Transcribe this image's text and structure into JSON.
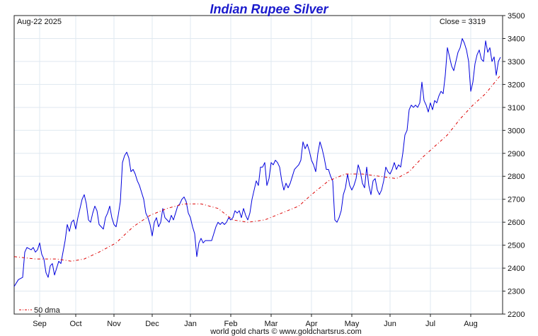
{
  "chart_data": {
    "type": "line",
    "title": "Indian Rupee Silver",
    "date_label": "Aug-22  2025",
    "close_label": "Close = 3319",
    "footer": "world gold charts © www.goldchartsrus.com",
    "ylim": [
      2200,
      3500
    ],
    "y_ticks": [
      2200,
      2300,
      2400,
      2500,
      2600,
      2700,
      2800,
      2900,
      3000,
      3100,
      3200,
      3300,
      3400,
      3500
    ],
    "x_ticks": [
      "Sep",
      "Oct",
      "Nov",
      "Dec",
      "Jan",
      "Feb",
      "Mar",
      "Apr",
      "May",
      "Jun",
      "Jul",
      "Aug"
    ],
    "grid": true,
    "legend": {
      "position": "bottom-left",
      "label": "50 dma"
    },
    "colors": {
      "price": "#0000dd",
      "dma": "#dd0000",
      "title": "#1a1acc",
      "grid": "#dfe8f0"
    },
    "series": [
      {
        "name": "",
        "style": "solid",
        "points": [
          [
            0,
            2320
          ],
          [
            2,
            2350
          ],
          [
            4,
            2360
          ],
          [
            5,
            2470
          ],
          [
            6,
            2490
          ],
          [
            8,
            2480
          ],
          [
            9,
            2490
          ],
          [
            10,
            2470
          ],
          [
            11,
            2480
          ],
          [
            12,
            2510
          ],
          [
            13,
            2460
          ],
          [
            14,
            2440
          ],
          [
            15,
            2380
          ],
          [
            16,
            2360
          ],
          [
            17,
            2410
          ],
          [
            18,
            2420
          ],
          [
            19,
            2370
          ],
          [
            20,
            2400
          ],
          [
            21,
            2430
          ],
          [
            22,
            2420
          ],
          [
            23,
            2470
          ],
          [
            24,
            2520
          ],
          [
            25,
            2590
          ],
          [
            26,
            2560
          ],
          [
            27,
            2600
          ],
          [
            28,
            2610
          ],
          [
            29,
            2570
          ],
          [
            30,
            2620
          ],
          [
            31,
            2660
          ],
          [
            32,
            2700
          ],
          [
            33,
            2720
          ],
          [
            34,
            2680
          ],
          [
            35,
            2610
          ],
          [
            36,
            2600
          ],
          [
            37,
            2640
          ],
          [
            38,
            2670
          ],
          [
            39,
            2650
          ],
          [
            40,
            2590
          ],
          [
            41,
            2580
          ],
          [
            42,
            2570
          ],
          [
            43,
            2620
          ],
          [
            44,
            2640
          ],
          [
            45,
            2670
          ],
          [
            46,
            2620
          ],
          [
            47,
            2590
          ],
          [
            48,
            2580
          ],
          [
            49,
            2630
          ],
          [
            50,
            2690
          ],
          [
            51,
            2860
          ],
          [
            52,
            2890
          ],
          [
            53,
            2905
          ],
          [
            54,
            2880
          ],
          [
            55,
            2820
          ],
          [
            56,
            2830
          ],
          [
            57,
            2810
          ],
          [
            58,
            2780
          ],
          [
            59,
            2760
          ],
          [
            60,
            2730
          ],
          [
            61,
            2700
          ],
          [
            62,
            2640
          ],
          [
            63,
            2620
          ],
          [
            64,
            2590
          ],
          [
            65,
            2540
          ],
          [
            66,
            2600
          ],
          [
            67,
            2620
          ],
          [
            68,
            2580
          ],
          [
            69,
            2600
          ],
          [
            70,
            2660
          ],
          [
            71,
            2620
          ],
          [
            72,
            2610
          ],
          [
            73,
            2600
          ],
          [
            74,
            2630
          ],
          [
            75,
            2610
          ],
          [
            76,
            2640
          ],
          [
            77,
            2670
          ],
          [
            78,
            2680
          ],
          [
            79,
            2700
          ],
          [
            80,
            2710
          ],
          [
            81,
            2690
          ],
          [
            82,
            2640
          ],
          [
            83,
            2620
          ],
          [
            84,
            2580
          ],
          [
            85,
            2550
          ],
          [
            86,
            2450
          ],
          [
            87,
            2510
          ],
          [
            88,
            2530
          ],
          [
            89,
            2510
          ],
          [
            90,
            2520
          ],
          [
            91,
            2520
          ],
          [
            92,
            2520
          ],
          [
            93,
            2520
          ],
          [
            94,
            2550
          ],
          [
            95,
            2580
          ],
          [
            96,
            2600
          ],
          [
            97,
            2590
          ],
          [
            98,
            2600
          ],
          [
            99,
            2590
          ],
          [
            100,
            2600
          ],
          [
            101,
            2620
          ],
          [
            102,
            2610
          ],
          [
            103,
            2620
          ],
          [
            104,
            2650
          ],
          [
            105,
            2640
          ],
          [
            106,
            2650
          ],
          [
            107,
            2620
          ],
          [
            108,
            2660
          ],
          [
            109,
            2630
          ],
          [
            110,
            2610
          ],
          [
            111,
            2640
          ],
          [
            112,
            2700
          ],
          [
            113,
            2740
          ],
          [
            114,
            2780
          ],
          [
            115,
            2760
          ],
          [
            116,
            2840
          ],
          [
            117,
            2840
          ],
          [
            118,
            2860
          ],
          [
            119,
            2760
          ],
          [
            120,
            2790
          ],
          [
            121,
            2860
          ],
          [
            122,
            2850
          ],
          [
            123,
            2870
          ],
          [
            124,
            2860
          ],
          [
            125,
            2840
          ],
          [
            126,
            2780
          ],
          [
            127,
            2740
          ],
          [
            128,
            2770
          ],
          [
            129,
            2750
          ],
          [
            130,
            2770
          ],
          [
            131,
            2800
          ],
          [
            132,
            2830
          ],
          [
            133,
            2840
          ],
          [
            134,
            2850
          ],
          [
            135,
            2870
          ],
          [
            136,
            2950
          ],
          [
            137,
            2920
          ],
          [
            138,
            2940
          ],
          [
            139,
            2910
          ],
          [
            140,
            2870
          ],
          [
            141,
            2850
          ],
          [
            142,
            2820
          ],
          [
            143,
            2900
          ],
          [
            144,
            2950
          ],
          [
            145,
            2920
          ],
          [
            146,
            2880
          ],
          [
            147,
            2830
          ],
          [
            148,
            2830
          ],
          [
            149,
            2800
          ],
          [
            150,
            2780
          ],
          [
            151,
            2610
          ],
          [
            152,
            2600
          ],
          [
            153,
            2620
          ],
          [
            154,
            2650
          ],
          [
            155,
            2720
          ],
          [
            156,
            2750
          ],
          [
            157,
            2810
          ],
          [
            158,
            2760
          ],
          [
            159,
            2740
          ],
          [
            160,
            2760
          ],
          [
            161,
            2790
          ],
          [
            162,
            2850
          ],
          [
            163,
            2820
          ],
          [
            164,
            2770
          ],
          [
            165,
            2750
          ],
          [
            166,
            2840
          ],
          [
            167,
            2760
          ],
          [
            168,
            2720
          ],
          [
            169,
            2780
          ],
          [
            170,
            2790
          ],
          [
            171,
            2740
          ],
          [
            172,
            2720
          ],
          [
            173,
            2740
          ],
          [
            174,
            2780
          ],
          [
            175,
            2840
          ],
          [
            176,
            2820
          ],
          [
            177,
            2810
          ],
          [
            178,
            2830
          ],
          [
            179,
            2860
          ],
          [
            180,
            2830
          ],
          [
            181,
            2850
          ],
          [
            182,
            2840
          ],
          [
            183,
            2900
          ],
          [
            184,
            2980
          ],
          [
            185,
            3000
          ],
          [
            186,
            3090
          ],
          [
            187,
            3110
          ],
          [
            188,
            3100
          ],
          [
            189,
            3110
          ],
          [
            190,
            3100
          ],
          [
            191,
            3120
          ],
          [
            192,
            3210
          ],
          [
            193,
            3130
          ],
          [
            194,
            3110
          ],
          [
            195,
            3080
          ],
          [
            196,
            3120
          ],
          [
            197,
            3090
          ],
          [
            198,
            3130
          ],
          [
            199,
            3120
          ],
          [
            200,
            3150
          ],
          [
            201,
            3170
          ],
          [
            202,
            3160
          ],
          [
            203,
            3240
          ],
          [
            204,
            3360
          ],
          [
            205,
            3320
          ],
          [
            206,
            3280
          ],
          [
            207,
            3260
          ],
          [
            208,
            3300
          ],
          [
            209,
            3340
          ],
          [
            210,
            3360
          ],
          [
            211,
            3400
          ],
          [
            212,
            3380
          ],
          [
            213,
            3350
          ],
          [
            214,
            3300
          ],
          [
            215,
            3170
          ],
          [
            216,
            3210
          ],
          [
            217,
            3290
          ],
          [
            218,
            3330
          ],
          [
            219,
            3350
          ],
          [
            220,
            3310
          ],
          [
            221,
            3300
          ],
          [
            222,
            3390
          ],
          [
            223,
            3340
          ],
          [
            224,
            3360
          ],
          [
            225,
            3300
          ],
          [
            226,
            3320
          ],
          [
            227,
            3240
          ],
          [
            228,
            3300
          ],
          [
            229,
            3319
          ]
        ]
      },
      {
        "name": "50 dma",
        "style": "dashdot",
        "points": [
          [
            0,
            2450
          ],
          [
            10,
            2440
          ],
          [
            20,
            2440
          ],
          [
            27,
            2430
          ],
          [
            33,
            2440
          ],
          [
            40,
            2470
          ],
          [
            48,
            2510
          ],
          [
            56,
            2580
          ],
          [
            64,
            2630
          ],
          [
            72,
            2660
          ],
          [
            80,
            2680
          ],
          [
            88,
            2680
          ],
          [
            96,
            2660
          ],
          [
            103,
            2610
          ],
          [
            110,
            2600
          ],
          [
            118,
            2610
          ],
          [
            126,
            2640
          ],
          [
            134,
            2670
          ],
          [
            140,
            2720
          ],
          [
            148,
            2780
          ],
          [
            156,
            2810
          ],
          [
            164,
            2810
          ],
          [
            172,
            2800
          ],
          [
            180,
            2790
          ],
          [
            186,
            2820
          ],
          [
            192,
            2880
          ],
          [
            198,
            2930
          ],
          [
            204,
            2980
          ],
          [
            210,
            3050
          ],
          [
            216,
            3110
          ],
          [
            222,
            3160
          ],
          [
            229,
            3240
          ]
        ]
      }
    ],
    "x_tick_positions": [
      12,
      29,
      47,
      65,
      83,
      102,
      121,
      140,
      159,
      177,
      196,
      215
    ]
  }
}
